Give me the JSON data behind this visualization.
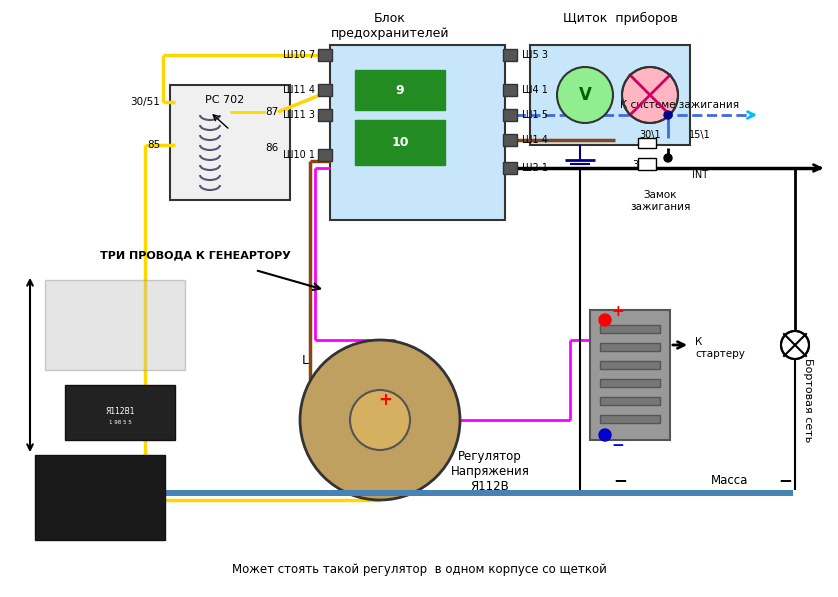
{
  "title": "",
  "bg_color": "#ffffff",
  "text_blok_predohranitelei": "Блок\nпредохранителей",
  "text_schitok_priborov": "Щиток  приборов",
  "text_rs702": "РС 702",
  "text_tri_provoda": "ТРИ ПРОВОДА К ГЕНЕАРТОРУ",
  "text_regulator": "Регулятор\nНапряжения\nЯ112В",
  "text_zamok": "Замок\nзажигания",
  "text_k_sisteme": "К системе зажигания",
  "text_k_starteru": "К\nстартеру",
  "text_bortovaya_set": "Бортовая сеть",
  "text_massa": "Масса",
  "text_INT": "INT",
  "text_bottom": "Может стоять такой регулятор  в одном корпусе со щеткой",
  "colors": {
    "yellow": "#FFD700",
    "brown": "#8B4513",
    "magenta": "#FF00FF",
    "blue_dashed": "#4169E1",
    "black": "#000000",
    "light_blue_box": "#ADD8E6",
    "green": "#228B22",
    "dark_blue": "#00008B",
    "red": "#FF0000",
    "gray": "#808080",
    "blue_arrow": "#00BFFF",
    "orange_brown": "#CD853F",
    "blue_bar": "#4682B4"
  }
}
